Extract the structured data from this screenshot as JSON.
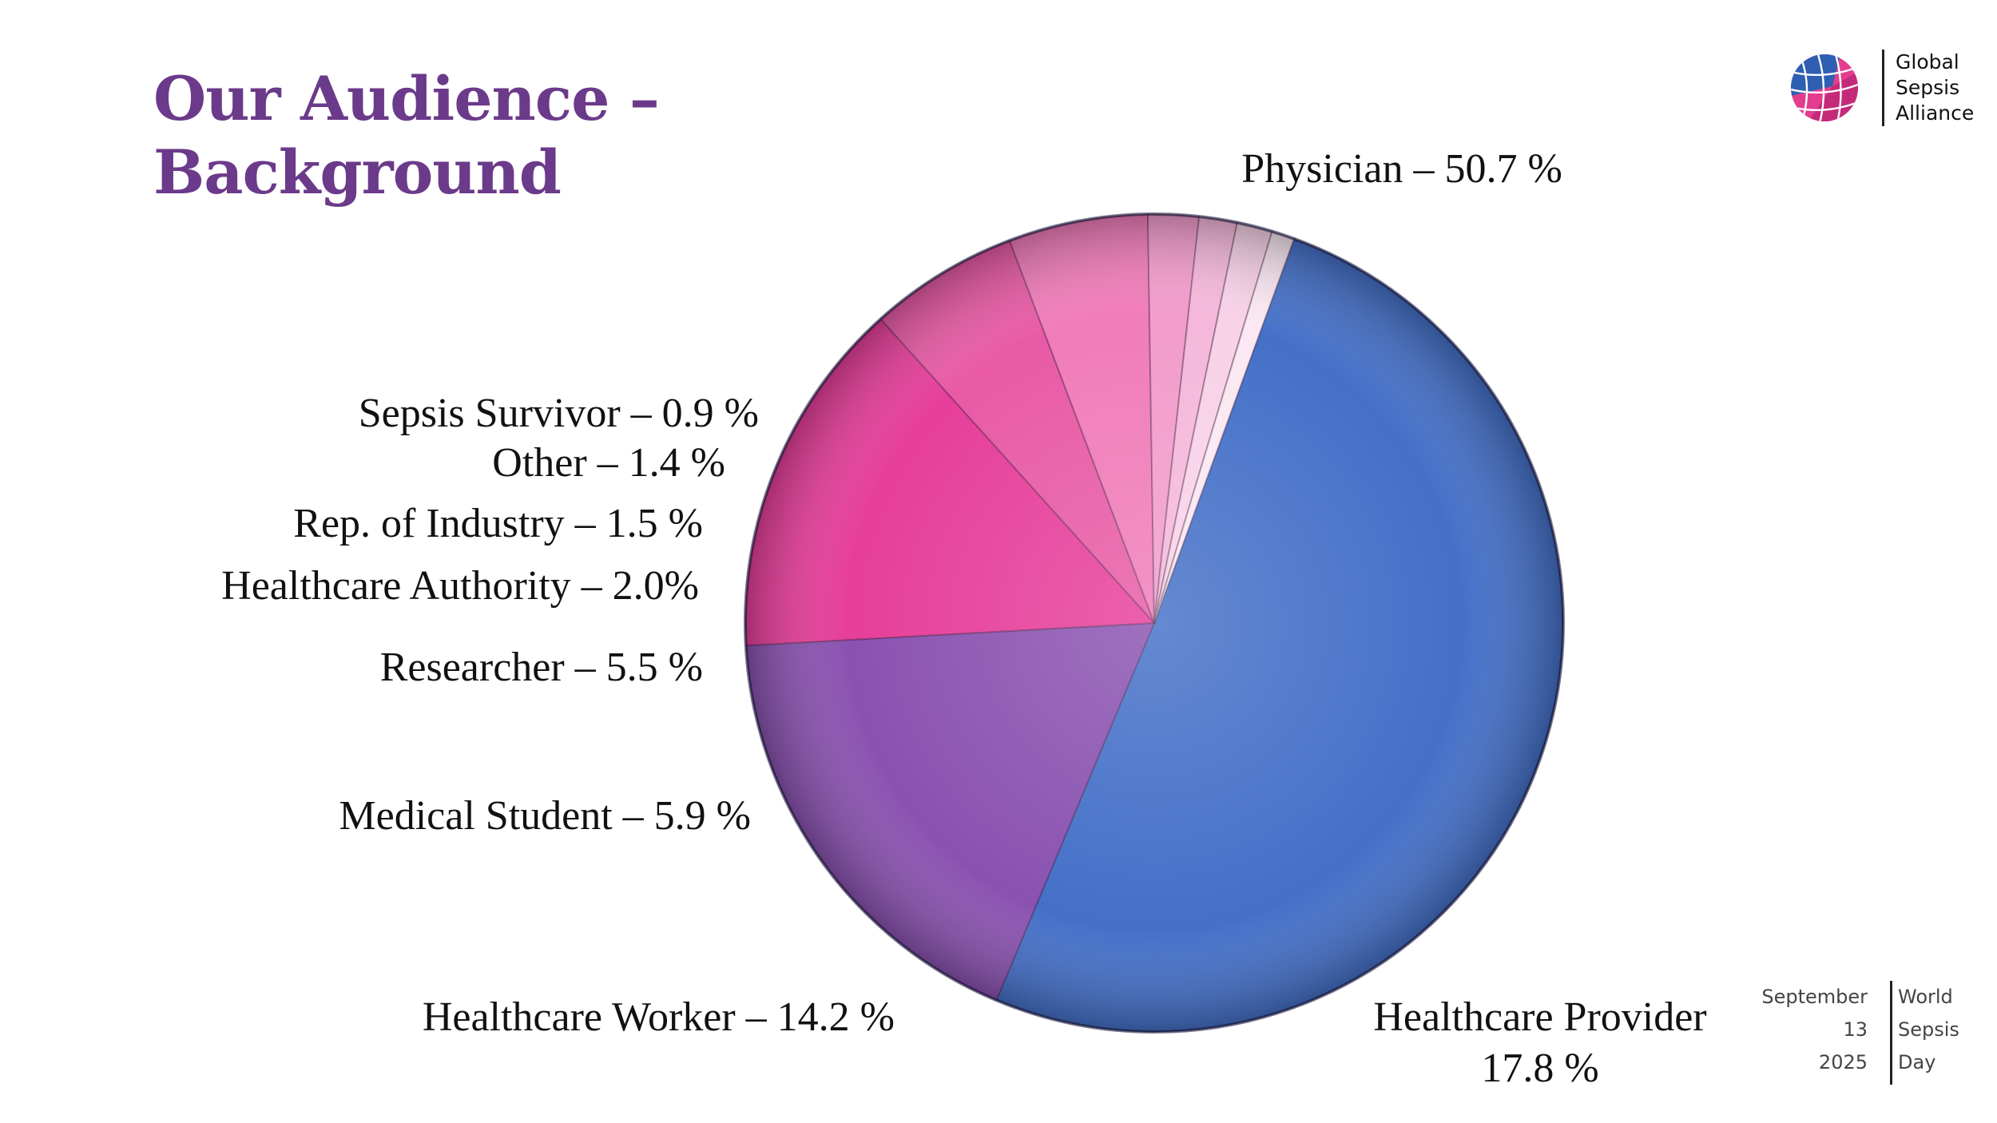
{
  "title": {
    "line1": "Our Audience –",
    "line2": "Background"
  },
  "logo": {
    "icon": "globe-logo-icon",
    "lines": [
      "Global",
      "Sepsis",
      "Alliance"
    ]
  },
  "footer": {
    "left": [
      "September",
      "13",
      "2025"
    ],
    "right": [
      "World",
      "Sepsis",
      "Day"
    ]
  },
  "chart_data": {
    "type": "pie",
    "title": "Our Audience – Background",
    "slices": [
      {
        "name": "Physician",
        "value": 50.7,
        "color": "#4470c8",
        "label": [
          "Physician – 50.7 %"
        ]
      },
      {
        "name": "Healthcare Provider",
        "value": 17.8,
        "color": "#8a52b0",
        "label": [
          "Healthcare Provider",
          "17.8 %"
        ]
      },
      {
        "name": "Healthcare Worker",
        "value": 14.2,
        "color": "#e63e9a",
        "label": [
          "Healthcare Worker – 14.2 %"
        ]
      },
      {
        "name": "Medical Student",
        "value": 5.9,
        "color": "#e85aa6",
        "label": [
          "Medical Student – 5.9 %"
        ]
      },
      {
        "name": "Researcher",
        "value": 5.5,
        "color": "#f07cba",
        "label": [
          "Researcher – 5.5 %"
        ]
      },
      {
        "name": "Healthcare Authority",
        "value": 2.0,
        "color": "#f29ccb",
        "label": [
          "Healthcare Authority – 2.0%"
        ]
      },
      {
        "name": "Rep. of Industry",
        "value": 1.5,
        "color": "#f5b8da",
        "label": [
          "Rep. of Industry – 1.5 %"
        ]
      },
      {
        "name": "Other",
        "value": 1.4,
        "color": "#f8d2e7",
        "label": [
          "Other – 1.4 %"
        ]
      },
      {
        "name": "Sepsis Survivor",
        "value": 0.9,
        "color": "#fbe8f2",
        "label": [
          "Sepsis Survivor – 0.9 %"
        ]
      }
    ],
    "legend": "none"
  }
}
